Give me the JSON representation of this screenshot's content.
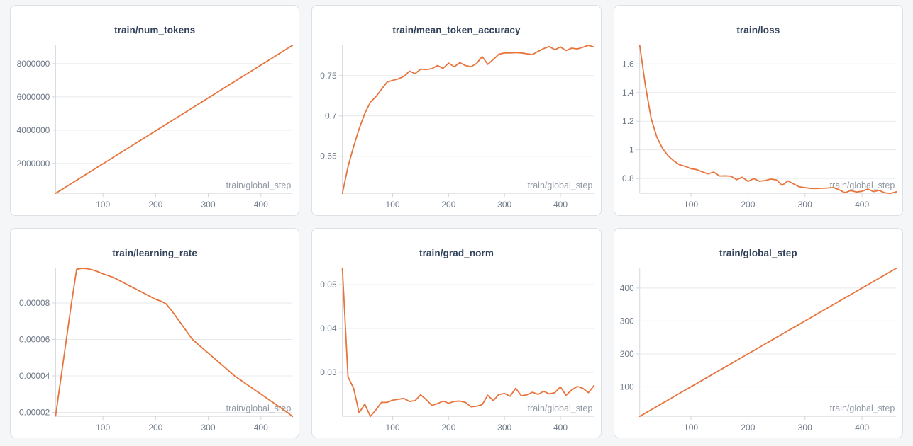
{
  "page": {
    "background": "#f5f6f7",
    "panel_background": "#ffffff",
    "panel_border": "#dde0e4"
  },
  "colors": {
    "series_line": "#e8743b",
    "chart_title": "#33425b",
    "tick_label": "#6e7887",
    "x_axis_label": "#9199a4",
    "gridline": "#e7e9ec",
    "axis_line": "#d3d7dd"
  },
  "x_axis_label": "train/global_step",
  "chart_data": [
    {
      "type": "line",
      "title": "train/num_tokens",
      "xlabel": "train/global_step",
      "legend": "none",
      "grid": "horizontal",
      "xlim": [
        10,
        460
      ],
      "ylim": [
        197800,
        9098800
      ],
      "x_ticks": [
        100,
        200,
        300,
        400
      ],
      "y_tick_values": [
        2000000,
        4000000,
        6000000,
        8000000
      ],
      "y_tick_labels": [
        "2000000",
        "4000000",
        "6000000",
        "8000000"
      ],
      "x": [
        10,
        20,
        30,
        40,
        50,
        60,
        70,
        80,
        90,
        100,
        110,
        120,
        130,
        140,
        150,
        160,
        170,
        180,
        190,
        200,
        210,
        220,
        230,
        240,
        250,
        260,
        270,
        280,
        290,
        300,
        310,
        320,
        330,
        340,
        350,
        360,
        370,
        380,
        390,
        400,
        410,
        420,
        430,
        440,
        450,
        460
      ],
      "y": [
        197800,
        395600,
        593400,
        791200,
        989000,
        1186800,
        1384600,
        1582400,
        1780200,
        1978000,
        2175800,
        2373600,
        2571400,
        2769200,
        2967000,
        3164800,
        3362600,
        3560400,
        3758200,
        3956000,
        4153800,
        4351600,
        4549400,
        4747200,
        4945000,
        5142800,
        5340600,
        5538400,
        5736200,
        5934000,
        6131800,
        6329600,
        6527400,
        6725200,
        6923000,
        7120800,
        7318600,
        7516400,
        7714200,
        7912000,
        8109800,
        8307600,
        8505400,
        8703200,
        8901000,
        9098800
      ]
    },
    {
      "type": "line",
      "title": "train/mean_token_accuracy",
      "xlabel": "train/global_step",
      "legend": "none",
      "grid": "horizontal",
      "xlim": [
        10,
        460
      ],
      "ylim": [
        0.604,
        0.7875
      ],
      "x_ticks": [
        100,
        200,
        300,
        400
      ],
      "y_tick_values": [
        0.65,
        0.7,
        0.75
      ],
      "y_tick_labels": [
        "0.65",
        "0.7",
        "0.75"
      ],
      "x": [
        10,
        20,
        30,
        40,
        50,
        60,
        70,
        80,
        90,
        100,
        110,
        120,
        130,
        140,
        150,
        160,
        170,
        180,
        190,
        200,
        210,
        220,
        230,
        240,
        250,
        260,
        270,
        280,
        290,
        300,
        310,
        320,
        330,
        340,
        350,
        360,
        370,
        380,
        390,
        400,
        410,
        420,
        430,
        440,
        450,
        460
      ],
      "y": [
        0.604,
        0.637,
        0.662,
        0.684,
        0.703,
        0.717,
        0.724,
        0.733,
        0.742,
        0.744,
        0.746,
        0.749,
        0.7555,
        0.7525,
        0.758,
        0.7575,
        0.7585,
        0.7625,
        0.759,
        0.7655,
        0.761,
        0.766,
        0.7625,
        0.761,
        0.765,
        0.7735,
        0.764,
        0.77,
        0.7765,
        0.778,
        0.778,
        0.7785,
        0.778,
        0.777,
        0.776,
        0.78,
        0.7835,
        0.786,
        0.782,
        0.7855,
        0.781,
        0.784,
        0.783,
        0.785,
        0.7875,
        0.7855
      ]
    },
    {
      "type": "line",
      "title": "train/loss",
      "xlabel": "train/global_step",
      "legend": "none",
      "grid": "horizontal",
      "xlim": [
        10,
        460
      ],
      "ylim": [
        0.696,
        1.73
      ],
      "x_ticks": [
        100,
        200,
        300,
        400
      ],
      "y_tick_values": [
        0.8,
        1,
        1.2,
        1.4,
        1.6
      ],
      "y_tick_labels": [
        "0.8",
        "1",
        "1.2",
        "1.4",
        "1.6"
      ],
      "x": [
        10,
        20,
        30,
        40,
        50,
        60,
        70,
        80,
        90,
        100,
        110,
        120,
        130,
        140,
        150,
        160,
        170,
        180,
        190,
        200,
        210,
        220,
        230,
        240,
        250,
        260,
        270,
        280,
        290,
        300,
        310,
        320,
        330,
        340,
        350,
        360,
        370,
        380,
        390,
        400,
        410,
        420,
        430,
        440,
        450,
        460
      ],
      "y": [
        1.73,
        1.45,
        1.22,
        1.09,
        1.01,
        0.958,
        0.922,
        0.896,
        0.885,
        0.868,
        0.862,
        0.846,
        0.832,
        0.845,
        0.817,
        0.818,
        0.816,
        0.792,
        0.809,
        0.78,
        0.799,
        0.781,
        0.786,
        0.796,
        0.79,
        0.752,
        0.784,
        0.762,
        0.742,
        0.736,
        0.731,
        0.73,
        0.732,
        0.734,
        0.737,
        0.721,
        0.701,
        0.716,
        0.706,
        0.711,
        0.726,
        0.709,
        0.717,
        0.7,
        0.696,
        0.707
      ]
    },
    {
      "type": "line",
      "title": "train/learning_rate",
      "xlabel": "train/global_step",
      "legend": "none",
      "grid": "horizontal",
      "xlim": [
        10,
        460
      ],
      "ylim": [
        1.78e-05,
        9.9e-05
      ],
      "x_ticks": [
        100,
        200,
        300,
        400
      ],
      "y_tick_values": [
        2e-05,
        4e-05,
        6e-05,
        8e-05
      ],
      "y_tick_labels": [
        "0.00002",
        "0.00004",
        "0.00006",
        "0.00008"
      ],
      "x": [
        10,
        20,
        30,
        40,
        50,
        60,
        70,
        80,
        90,
        100,
        110,
        120,
        130,
        140,
        150,
        160,
        170,
        180,
        190,
        200,
        210,
        220,
        230,
        240,
        250,
        260,
        270,
        280,
        290,
        300,
        310,
        320,
        330,
        340,
        350,
        360,
        370,
        380,
        390,
        400,
        410,
        420,
        430,
        440,
        450,
        460
      ],
      "y": [
        1.8e-05,
        3.85e-05,
        5.9e-05,
        7.95e-05,
        9.85e-05,
        9.9e-05,
        9.88e-05,
        9.82e-05,
        9.72e-05,
        9.6e-05,
        9.5e-05,
        9.4e-05,
        9.25e-05,
        9.1e-05,
        8.95e-05,
        8.8e-05,
        8.65e-05,
        8.5e-05,
        8.35e-05,
        8.2e-05,
        8.1e-05,
        7.95e-05,
        7.6e-05,
        7.2e-05,
        6.8e-05,
        6.4e-05,
        6e-05,
        5.75e-05,
        5.5e-05,
        5.25e-05,
        5e-05,
        4.75e-05,
        4.5e-05,
        4.25e-05,
        4e-05,
        3.8e-05,
        3.6e-05,
        3.4e-05,
        3.2e-05,
        3e-05,
        2.8e-05,
        2.6e-05,
        2.4e-05,
        2.2e-05,
        2e-05,
        1.78e-05
      ]
    },
    {
      "type": "line",
      "title": "train/grad_norm",
      "xlabel": "train/global_step",
      "legend": "none",
      "grid": "horizontal",
      "xlim": [
        10,
        460
      ],
      "ylim": [
        0.02,
        0.0537
      ],
      "x_ticks": [
        100,
        200,
        300,
        400
      ],
      "y_tick_values": [
        0.03,
        0.04,
        0.05
      ],
      "y_tick_labels": [
        "0.03",
        "0.04",
        "0.05"
      ],
      "x": [
        10,
        20,
        30,
        40,
        50,
        60,
        70,
        80,
        90,
        100,
        110,
        120,
        130,
        140,
        150,
        160,
        170,
        180,
        190,
        200,
        210,
        220,
        230,
        240,
        250,
        260,
        270,
        280,
        290,
        300,
        310,
        320,
        330,
        340,
        350,
        360,
        370,
        380,
        390,
        400,
        410,
        420,
        430,
        440,
        450,
        460
      ],
      "y": [
        0.0537,
        0.029,
        0.0264,
        0.0208,
        0.0228,
        0.02,
        0.0215,
        0.0232,
        0.0232,
        0.0237,
        0.0239,
        0.0241,
        0.0234,
        0.0236,
        0.0249,
        0.0238,
        0.0225,
        0.0229,
        0.0235,
        0.023,
        0.0234,
        0.0235,
        0.0232,
        0.0222,
        0.0223,
        0.0227,
        0.0248,
        0.0236,
        0.025,
        0.0252,
        0.0246,
        0.0264,
        0.0247,
        0.0249,
        0.0255,
        0.025,
        0.0257,
        0.0251,
        0.0254,
        0.0267,
        0.0248,
        0.026,
        0.0268,
        0.0264,
        0.0254,
        0.027
      ]
    },
    {
      "type": "line",
      "title": "train/global_step",
      "xlabel": "train/global_step",
      "legend": "none",
      "grid": "horizontal",
      "xlim": [
        10,
        460
      ],
      "ylim": [
        10,
        460
      ],
      "x_ticks": [
        100,
        200,
        300,
        400
      ],
      "y_tick_values": [
        100,
        200,
        300,
        400
      ],
      "y_tick_labels": [
        "100",
        "200",
        "300",
        "400"
      ],
      "x": [
        10,
        20,
        30,
        40,
        50,
        60,
        70,
        80,
        90,
        100,
        110,
        120,
        130,
        140,
        150,
        160,
        170,
        180,
        190,
        200,
        210,
        220,
        230,
        240,
        250,
        260,
        270,
        280,
        290,
        300,
        310,
        320,
        330,
        340,
        350,
        360,
        370,
        380,
        390,
        400,
        410,
        420,
        430,
        440,
        450,
        460
      ],
      "y": [
        10,
        20,
        30,
        40,
        50,
        60,
        70,
        80,
        90,
        100,
        110,
        120,
        130,
        140,
        150,
        160,
        170,
        180,
        190,
        200,
        210,
        220,
        230,
        240,
        250,
        260,
        270,
        280,
        290,
        300,
        310,
        320,
        330,
        340,
        350,
        360,
        370,
        380,
        390,
        400,
        410,
        420,
        430,
        440,
        450,
        460
      ]
    }
  ]
}
